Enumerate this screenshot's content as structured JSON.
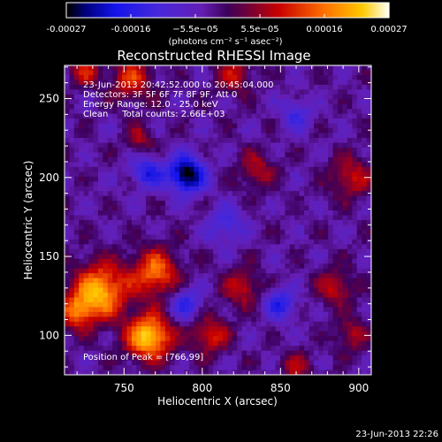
{
  "chart_data": {
    "type": "heatmap",
    "title": "Reconstructed RHESSI Image",
    "xlabel": "Heliocentric X (arcsec)",
    "ylabel": "Heliocentric Y (arcsec)",
    "xlim": [
      712,
      908
    ],
    "ylim": [
      75,
      271
    ],
    "x_ticks": [
      "750",
      "800",
      "850",
      "900"
    ],
    "y_ticks": [
      "100",
      "150",
      "200",
      "250"
    ],
    "colorbar": {
      "range": [
        -0.00027,
        0.00027
      ],
      "tick_labels": [
        "-0.00027",
        "-0.00016",
        "−5.5e−05",
        "5.5e−05",
        "0.00016",
        "0.00027"
      ],
      "unit_label": "(photons cm⁻² s⁻¹ asec⁻²)"
    },
    "info_lines": [
      "23-Jun-2013 20:42:52.000 to 20:45:04.000",
      "Detectors: 3F 5F 6F 7F 8F 9F, Att 0",
      "Energy Range: 12.0 - 25.0 keV",
      "Clean     Total counts: 2.66E+03"
    ],
    "peak_label": "Position of Peak = [766,99]",
    "peak": [
      766,
      99
    ],
    "sources": [
      {
        "x": 766,
        "y": 99,
        "amp": 0.00027,
        "sigma": 10
      },
      {
        "x": 735,
        "y": 128,
        "amp": 0.00024,
        "sigma": 12
      },
      {
        "x": 770,
        "y": 140,
        "amp": 0.00019,
        "sigma": 10
      },
      {
        "x": 720,
        "y": 115,
        "amp": 0.00016,
        "sigma": 8
      },
      {
        "x": 805,
        "y": 100,
        "amp": 0.00014,
        "sigma": 8
      },
      {
        "x": 755,
        "y": 262,
        "amp": 0.00014,
        "sigma": 9
      },
      {
        "x": 725,
        "y": 268,
        "amp": 0.00012,
        "sigma": 7
      },
      {
        "x": 820,
        "y": 265,
        "amp": 0.00011,
        "sigma": 8
      },
      {
        "x": 825,
        "y": 130,
        "amp": 0.00012,
        "sigma": 8
      },
      {
        "x": 835,
        "y": 205,
        "amp": 0.0001,
        "sigma": 8
      },
      {
        "x": 895,
        "y": 200,
        "amp": 0.00012,
        "sigma": 9
      },
      {
        "x": 885,
        "y": 130,
        "amp": 0.00011,
        "sigma": 8
      },
      {
        "x": 895,
        "y": 100,
        "amp": 0.0001,
        "sigma": 7
      },
      {
        "x": 760,
        "y": 225,
        "amp": 9e-05,
        "sigma": 6
      },
      {
        "x": 860,
        "y": 80,
        "amp": 9e-05,
        "sigma": 7
      },
      {
        "x": 790,
        "y": 202,
        "amp": -0.00026,
        "sigma": 8
      },
      {
        "x": 765,
        "y": 203,
        "amp": -0.00014,
        "sigma": 7
      },
      {
        "x": 850,
        "y": 120,
        "amp": -0.00013,
        "sigma": 7
      },
      {
        "x": 790,
        "y": 120,
        "amp": -0.00012,
        "sigma": 7
      },
      {
        "x": 815,
        "y": 170,
        "amp": -0.0001,
        "sigma": 8
      },
      {
        "x": 860,
        "y": 240,
        "amp": -0.0001,
        "sigma": 7
      }
    ]
  },
  "footer": {
    "timestamp": "23-Jun-2013 22:26"
  }
}
